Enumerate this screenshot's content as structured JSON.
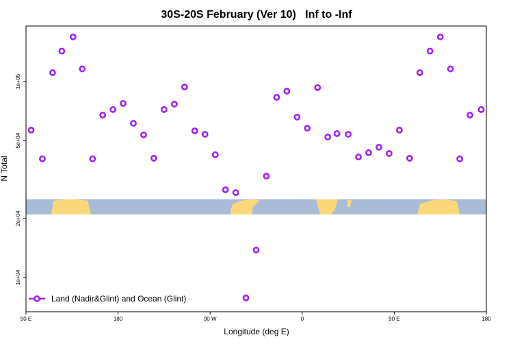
{
  "chart_data": {
    "type": "scatter",
    "title": "30S-20S February (Ver 10)   Inf to -Inf",
    "x_label": "Longitude (deg E)",
    "y_label": "N Total",
    "ylog": true,
    "legend": "bottom-left",
    "xlim": [
      90,
      540
    ],
    "ylim": [
      6680,
      192000
    ],
    "xticks": [
      {
        "value": 90,
        "label": "90 E"
      },
      180,
      {
        "value": 270,
        "label": "90 W"
      },
      {
        "value": 360,
        "label": "0"
      },
      {
        "value": 450,
        "label": "90 E"
      },
      {
        "value": 540,
        "label": "180"
      }
    ],
    "yticks": [
      {
        "value": 10000,
        "label": "1e+04"
      },
      {
        "value": 20000,
        "label": "2e+04"
      },
      {
        "value": 50000,
        "label": "5e+04"
      },
      {
        "value": 100000,
        "label": "1e+05"
      }
    ],
    "series": [
      {
        "name": "Land (Nadir&Glint) and Ocean (Glint)",
        "color": "#a020f0",
        "x": [
          95,
          106,
          116,
          125,
          136,
          145,
          155,
          165,
          175,
          185,
          195,
          205,
          215,
          225,
          235,
          245,
          255,
          265,
          275,
          285,
          295,
          305,
          315,
          325,
          335,
          345,
          355,
          365,
          375,
          385,
          394,
          405,
          415,
          425,
          435,
          445,
          455,
          465,
          475,
          485,
          495,
          505,
          514,
          524,
          535
        ],
        "values": [
          56500,
          40300,
          111000,
          143000,
          169000,
          116000,
          40300,
          67400,
          71900,
          77300,
          61200,
          53400,
          40600,
          71900,
          76700,
          93800,
          56000,
          53800,
          42300,
          28000,
          27100,
          7860,
          13800,
          32900,
          83100,
          89300,
          65800,
          57800,
          93100,
          52100,
          54200,
          53800,
          41200,
          43300,
          46200,
          42900,
          56500,
          40600,
          111000,
          143000,
          169000,
          116000,
          40300,
          67400,
          71900
        ]
      }
    ]
  }
}
